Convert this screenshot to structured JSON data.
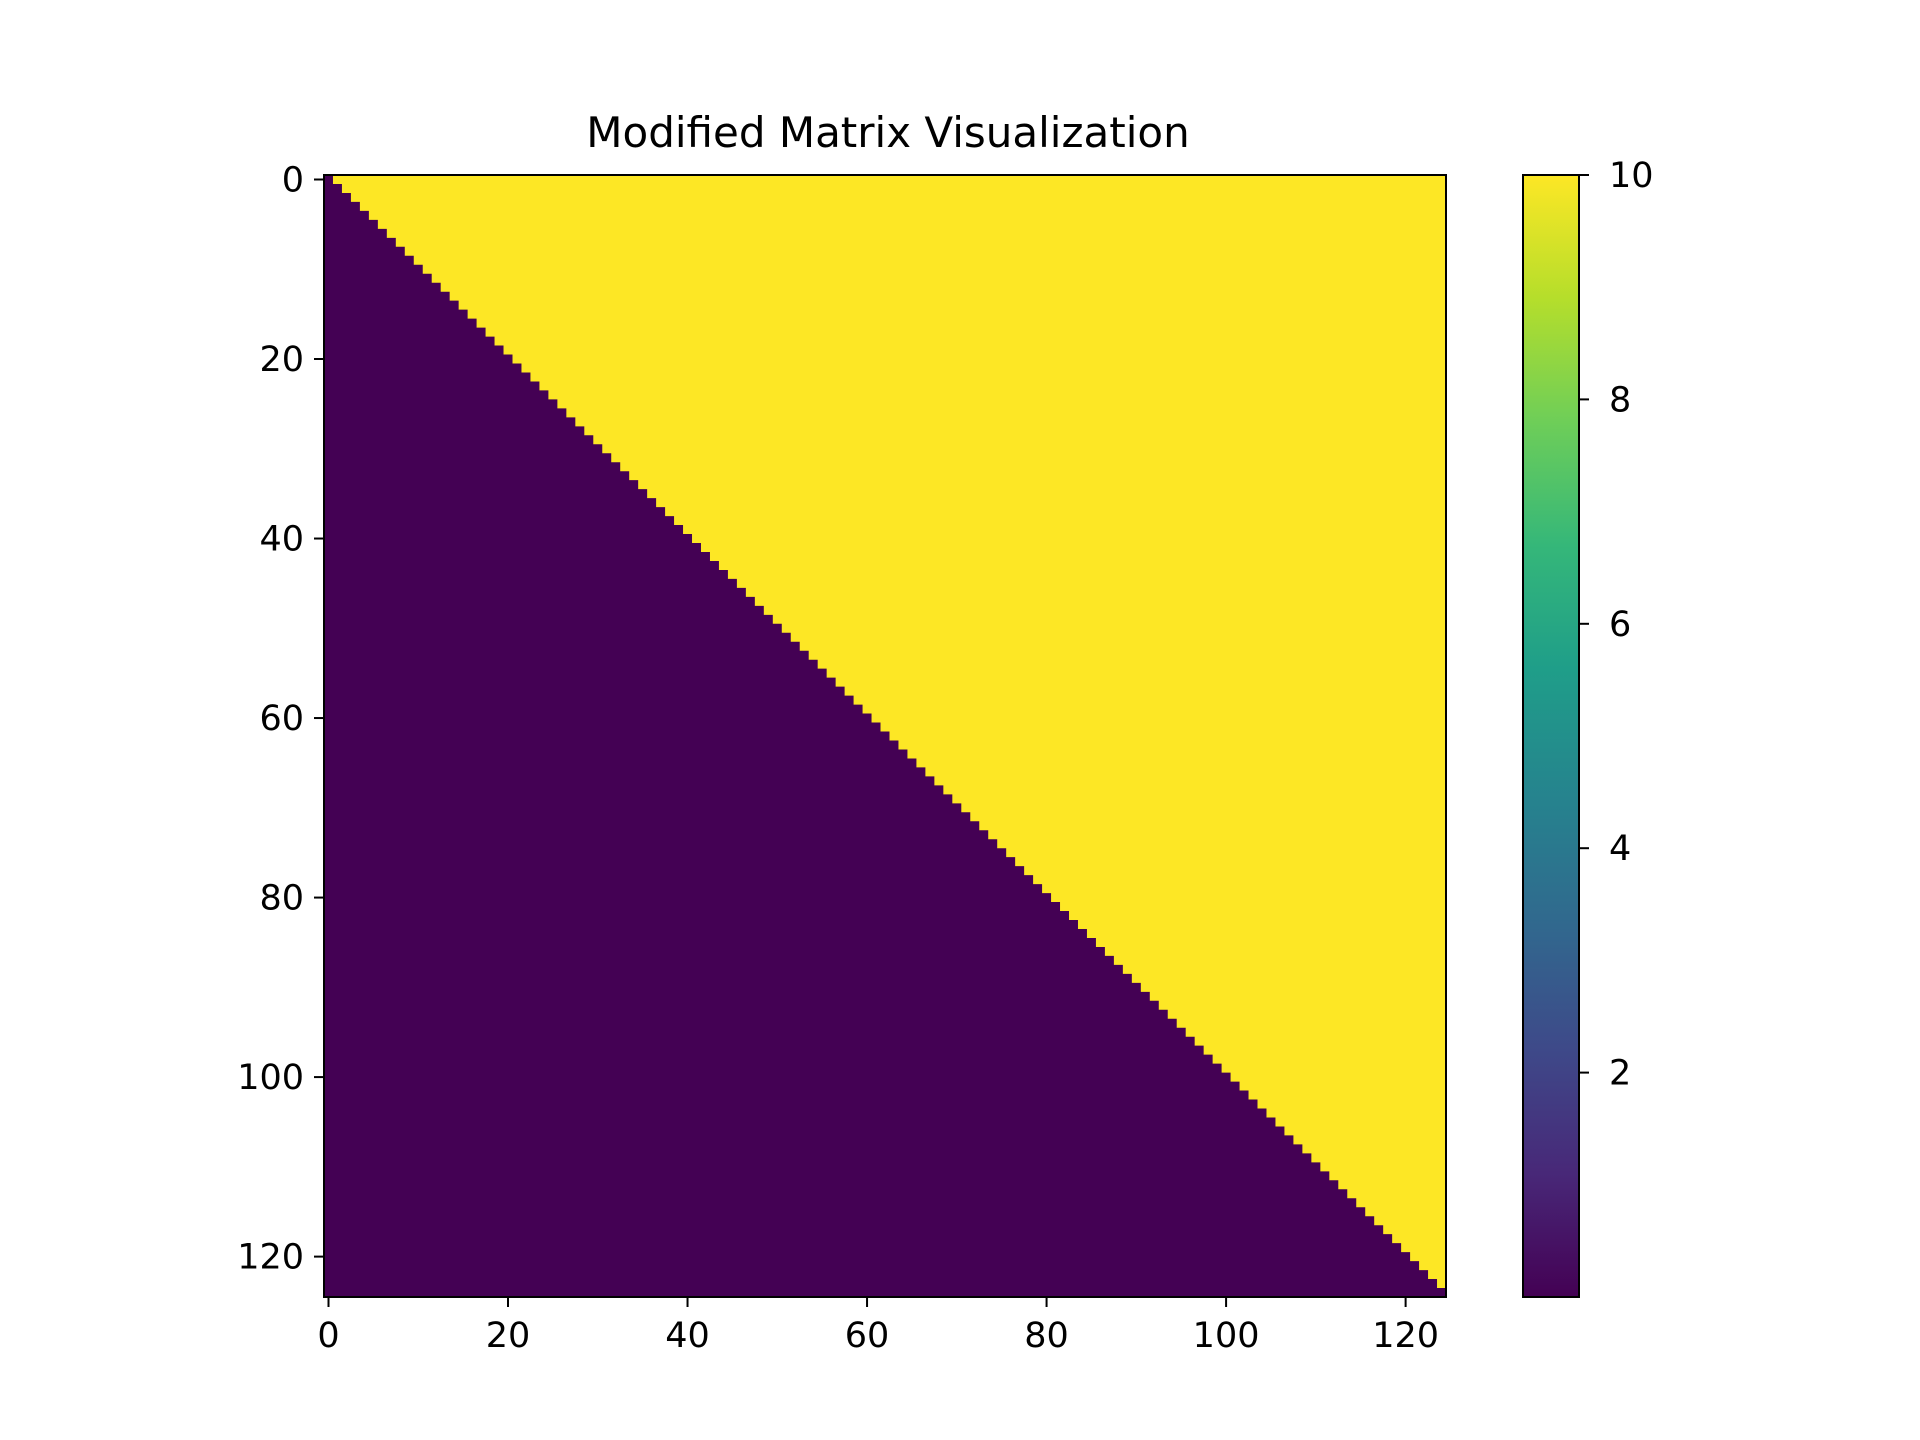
{
  "chart_data": {
    "type": "heatmap",
    "title": "Modified Matrix Visualization",
    "xlabel": "",
    "ylabel": "",
    "rows": 125,
    "cols": 125,
    "pattern": "upper triangle (column > row) = 10; diagonal and lower triangle ≈ 0",
    "upper_value": 10,
    "lower_value": 0,
    "x_ticks": [
      0,
      20,
      40,
      60,
      80,
      100,
      120
    ],
    "y_ticks": [
      0,
      20,
      40,
      60,
      80,
      100,
      120
    ],
    "x_origin": "top-left",
    "colormap": "viridis",
    "colorbar": {
      "min": 0,
      "max": 10,
      "ticks": [
        2,
        4,
        6,
        8,
        10
      ],
      "position": "right"
    },
    "grid": false
  }
}
